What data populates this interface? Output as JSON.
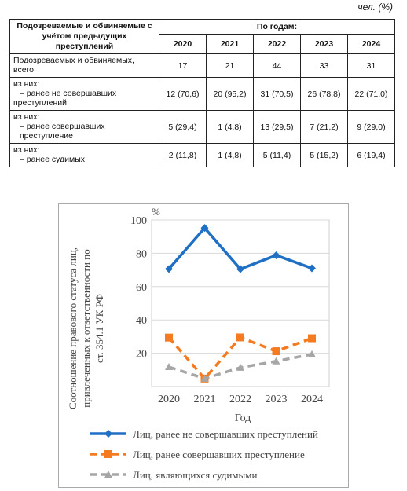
{
  "unit_label": "чел. (%)",
  "table": {
    "header_label": "Подозреваемые и обвиняемые с учётом предыдущих преступлений",
    "group_header": "По годам:",
    "years": [
      "2020",
      "2021",
      "2022",
      "2023",
      "2024"
    ],
    "rows": [
      {
        "label_lines": [
          "Подозреваемых и обвиняемых,",
          "всего"
        ],
        "values": [
          "17",
          "21",
          "44",
          "33",
          "31"
        ]
      },
      {
        "label_lines": [
          "из них:",
          "– ранее не совершавших",
          "преступлений"
        ],
        "values": [
          "12 (70,6)",
          "20 (95,2)",
          "31 (70,5)",
          "26 (78,8)",
          "22 (71,0)"
        ]
      },
      {
        "label_lines": [
          "из них:",
          "– ранее совершавших",
          "преступление"
        ],
        "values": [
          "5 (29,4)",
          "1 (4,8)",
          "13 (29,5)",
          "7 (21,2)",
          "9 (29,0)"
        ]
      },
      {
        "label_lines": [
          "из них:",
          "– ранее судимых"
        ],
        "values": [
          "2 (11,8)",
          "1 (4,8)",
          "5 (11,4)",
          "5 (15,2)",
          "6 (19,4)"
        ]
      }
    ]
  },
  "chart_data": {
    "type": "line",
    "categories": [
      "2020",
      "2021",
      "2022",
      "2023",
      "2024"
    ],
    "xlabel": "Год",
    "ylabel_lines": [
      "Соотношение правового статуса лиц,",
      "привлеченных к ответственности по",
      "ст. 354.1 УК РФ"
    ],
    "y_unit": "%",
    "ylim": [
      0,
      100
    ],
    "yticks": [
      "20",
      "40",
      "60",
      "80",
      "100"
    ],
    "grid": true,
    "legend_position": "bottom",
    "series": [
      {
        "name": "Лиц, ранее не совершавших преступлений",
        "values": [
          70.6,
          95.2,
          70.5,
          78.8,
          71.0
        ],
        "color": "#1f6fc5",
        "marker": "diamond",
        "dash": "solid"
      },
      {
        "name": "Лиц, ранее совершавших преступление",
        "values": [
          29.4,
          4.8,
          29.5,
          21.2,
          29.0
        ],
        "color": "#f47b20",
        "marker": "square",
        "dash": "dashed"
      },
      {
        "name": "Лиц, являющихся судимыми",
        "values": [
          11.8,
          4.8,
          11.4,
          15.2,
          19.4
        ],
        "color": "#a6a6a6",
        "marker": "triangle",
        "dash": "dashed"
      }
    ]
  }
}
